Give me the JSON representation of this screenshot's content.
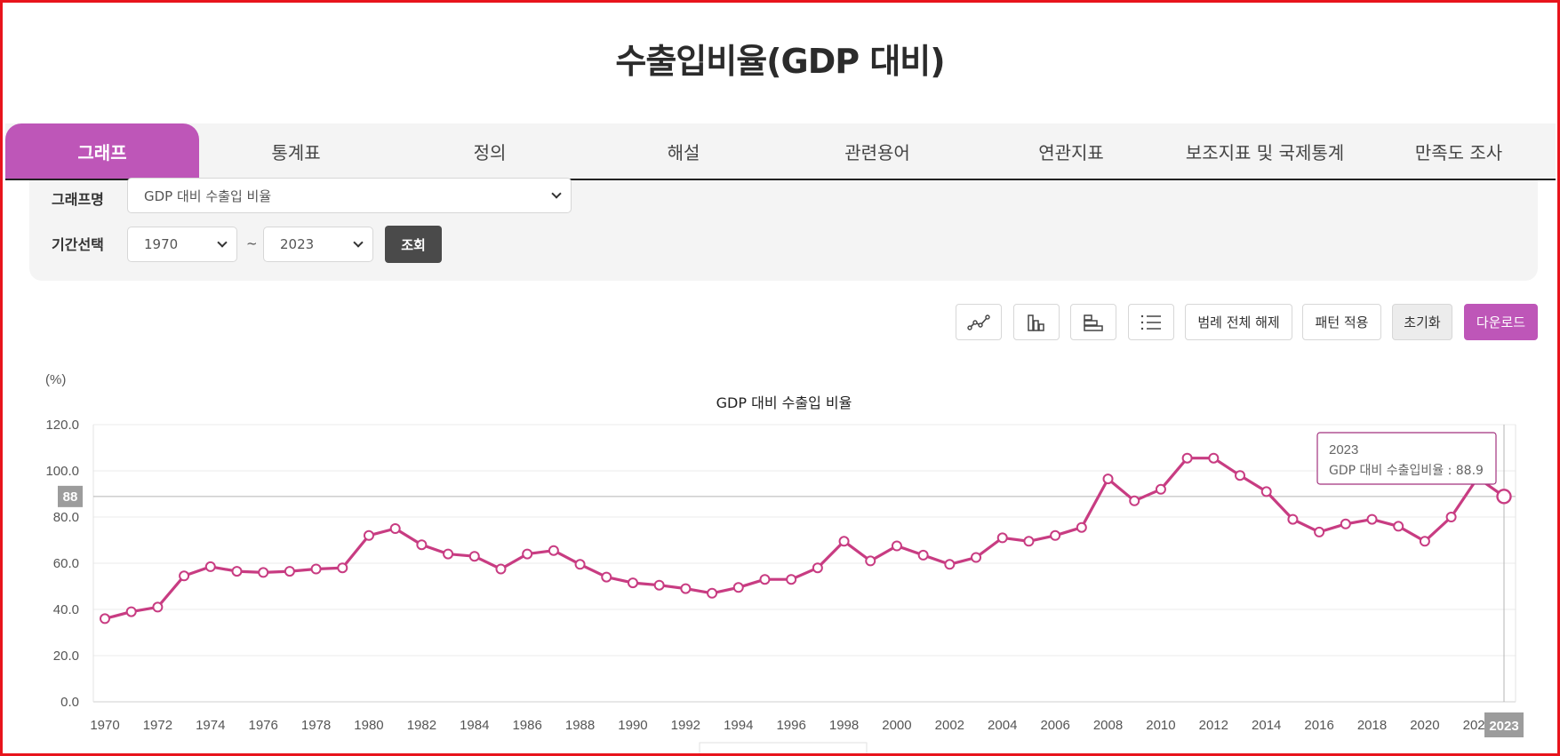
{
  "page": {
    "title": "수출입비율(GDP 대비)"
  },
  "tabs": [
    {
      "label": "그래프",
      "active": true
    },
    {
      "label": "통계표",
      "active": false
    },
    {
      "label": "정의",
      "active": false
    },
    {
      "label": "해설",
      "active": false
    },
    {
      "label": "관련용어",
      "active": false
    },
    {
      "label": "연관지표",
      "active": false
    },
    {
      "label": "보조지표 및 국제통계",
      "active": false
    },
    {
      "label": "만족도 조사",
      "active": false
    }
  ],
  "filters": {
    "graph_name_label": "그래프명",
    "graph_name_value": "GDP 대비 수출입 비율",
    "period_label": "기간선택",
    "start_year": "1970",
    "tilde": "~",
    "end_year": "2023",
    "search_button": "조회"
  },
  "toolbar": {
    "icons": [
      "line-chart-icon",
      "bar-chart-icon",
      "horizontal-bar-chart-icon",
      "ordered-list-icon"
    ],
    "legend_off": "범례 전체 해제",
    "pattern": "패턴 적용",
    "reset": "초기화",
    "download": "다운로드"
  },
  "colors": {
    "accent": "#be56b8",
    "series": "#c83c82",
    "dark_button": "#4a4a4a"
  },
  "chart_data": {
    "type": "line",
    "title": "GDP 대비 수출입 비율",
    "unit": "(%)",
    "ylim": [
      0,
      120
    ],
    "yticks": [
      "0.0",
      "20.0",
      "40.0",
      "60.0",
      "80.0",
      "100.0",
      "120.0"
    ],
    "x": [
      1970,
      1971,
      1972,
      1973,
      1974,
      1975,
      1976,
      1977,
      1978,
      1979,
      1980,
      1981,
      1982,
      1983,
      1984,
      1985,
      1986,
      1987,
      1988,
      1989,
      1990,
      1991,
      1992,
      1993,
      1994,
      1995,
      1996,
      1997,
      1998,
      1999,
      2000,
      2001,
      2002,
      2003,
      2004,
      2005,
      2006,
      2007,
      2008,
      2009,
      2010,
      2011,
      2012,
      2013,
      2014,
      2015,
      2016,
      2017,
      2018,
      2019,
      2020,
      2021,
      2022,
      2023
    ],
    "xticks": [
      "1970",
      "1972",
      "1974",
      "1976",
      "1978",
      "1980",
      "1982",
      "1984",
      "1986",
      "1988",
      "1990",
      "1992",
      "1994",
      "1996",
      "1998",
      "2000",
      "2002",
      "2004",
      "2006",
      "2008",
      "2010",
      "2012",
      "2014",
      "2016",
      "2018",
      "2020",
      "2022"
    ],
    "series": [
      {
        "name": "수출입비율",
        "values": [
          36.0,
          39.0,
          41.0,
          54.5,
          58.5,
          56.5,
          56.0,
          56.5,
          57.5,
          58.0,
          72.0,
          75.0,
          68.0,
          64.0,
          63.0,
          57.5,
          64.0,
          65.5,
          59.5,
          54.0,
          51.5,
          50.5,
          49.0,
          47.0,
          49.5,
          53.0,
          53.0,
          58.0,
          69.5,
          61.0,
          67.5,
          63.5,
          59.5,
          62.5,
          71.0,
          69.5,
          72.0,
          75.5,
          96.5,
          87.0,
          92.0,
          105.5,
          105.5,
          98.0,
          91.0,
          79.0,
          73.5,
          77.0,
          79.0,
          76.0,
          69.5,
          80.0,
          97.0,
          88.9
        ]
      }
    ],
    "grid": true,
    "legend": "none",
    "crosshair": {
      "y_badge": "88",
      "x_badge": "2023"
    },
    "tooltip": {
      "year": "2023",
      "text": "GDP 대비 수출입비율 : 88.9"
    }
  }
}
